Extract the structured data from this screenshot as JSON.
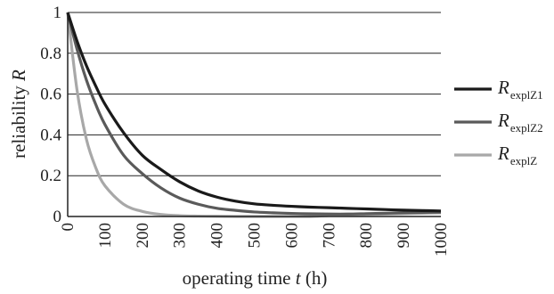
{
  "chart_data": {
    "type": "line",
    "xlabel": {
      "text": "operating time ",
      "var": "t",
      "unit": " (h)"
    },
    "ylabel": {
      "text": "reliability ",
      "var": "R"
    },
    "xlim": [
      0,
      1000
    ],
    "ylim": [
      0,
      1
    ],
    "x_ticks": [
      "0",
      "100",
      "200",
      "300",
      "400",
      "500",
      "600",
      "700",
      "800",
      "900",
      "1000"
    ],
    "y_ticks": [
      "0",
      "0.2",
      "0.4",
      "0.6",
      "0.8",
      "1"
    ],
    "grid": "horizontal",
    "legend_position": "right",
    "x": [
      0,
      25,
      50,
      75,
      100,
      150,
      200,
      250,
      300,
      350,
      400,
      450,
      500,
      550,
      600,
      650,
      700,
      750,
      800,
      850,
      900,
      950,
      1000
    ],
    "series": [
      {
        "name": "explZ1",
        "legend_main": "R",
        "legend_sub": "explZ1",
        "color": "#1a1a1a",
        "values": [
          1.0,
          0.86,
          0.74,
          0.64,
          0.55,
          0.41,
          0.3,
          0.23,
          0.17,
          0.125,
          0.095,
          0.075,
          0.062,
          0.055,
          0.05,
          0.046,
          0.043,
          0.04,
          0.037,
          0.034,
          0.031,
          0.029,
          0.027
        ]
      },
      {
        "name": "explZ2",
        "legend_main": "R",
        "legend_sub": "explZ2",
        "color": "#5a5a5a",
        "values": [
          1.0,
          0.82,
          0.67,
          0.55,
          0.45,
          0.3,
          0.21,
          0.14,
          0.09,
          0.06,
          0.04,
          0.03,
          0.022,
          0.018,
          0.015,
          0.013,
          0.012,
          0.012,
          0.014,
          0.016,
          0.018,
          0.02,
          0.021
        ]
      },
      {
        "name": "explZ",
        "legend_main": "R",
        "legend_sub": "explZ",
        "color": "#a8a8a8",
        "values": [
          1.0,
          0.62,
          0.38,
          0.24,
          0.15,
          0.06,
          0.025,
          0.01,
          0.004,
          0.002,
          0.001,
          0.0,
          0.0,
          0.0,
          0.0,
          0.0,
          0.005,
          0.008,
          0.01,
          0.012,
          0.014,
          0.016,
          0.018
        ]
      }
    ]
  }
}
